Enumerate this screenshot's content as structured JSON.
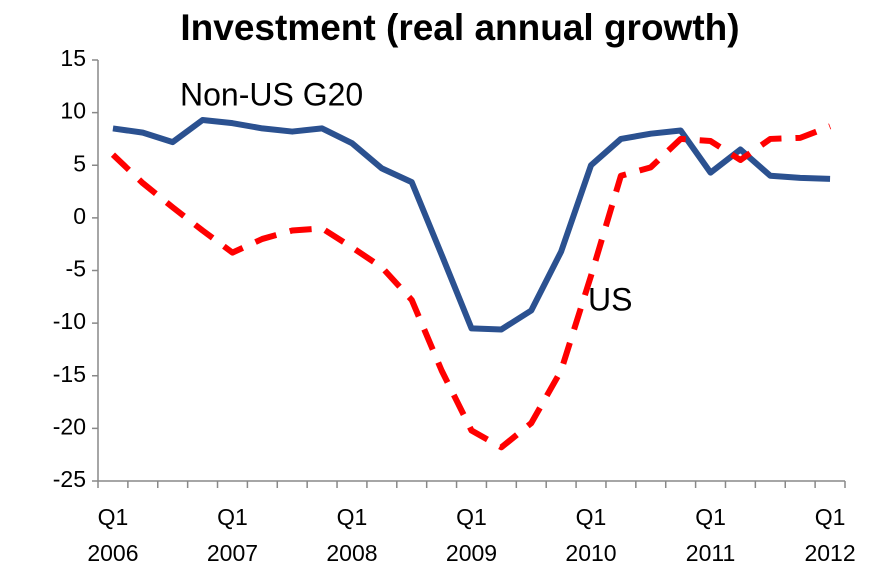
{
  "chart_data": {
    "type": "line",
    "title": "Investment (real annual growth)",
    "categories": [
      [
        "Q1",
        "2006"
      ],
      null,
      null,
      null,
      [
        "Q1",
        "2007"
      ],
      null,
      null,
      null,
      [
        "Q1",
        "2008"
      ],
      null,
      null,
      null,
      [
        "Q1",
        "2009"
      ],
      null,
      null,
      null,
      [
        "Q1",
        "2010"
      ],
      null,
      null,
      null,
      [
        "Q1",
        "2011"
      ],
      null,
      null,
      null,
      [
        "Q1",
        "2012"
      ]
    ],
    "series": [
      {
        "name": "Non-US G20",
        "color": "#2b5190",
        "dashed": false,
        "values": [
          8.5,
          8.1,
          7.2,
          9.3,
          9.0,
          8.5,
          8.2,
          8.5,
          7.1,
          4.7,
          3.4,
          -3.5,
          -10.5,
          -10.6,
          -8.8,
          -3.2,
          5.0,
          7.5,
          8.0,
          8.3,
          4.3,
          6.5,
          4.0,
          3.8,
          3.7
        ]
      },
      {
        "name": "US",
        "color": "#ff0000",
        "dashed": true,
        "values": [
          6.0,
          3.3,
          1.0,
          -1.2,
          -3.3,
          -2.0,
          -1.2,
          -1.0,
          -2.8,
          -4.7,
          -7.8,
          -14.5,
          -20.2,
          -21.8,
          -19.5,
          -14.5,
          -5.5,
          4.0,
          4.8,
          7.5,
          7.3,
          5.5,
          7.5,
          7.6,
          8.7
        ]
      }
    ],
    "ylim": [
      -25,
      15
    ],
    "yticks": [
      -25,
      -20,
      -15,
      -10,
      -5,
      0,
      5,
      10,
      15
    ],
    "grid": false
  }
}
